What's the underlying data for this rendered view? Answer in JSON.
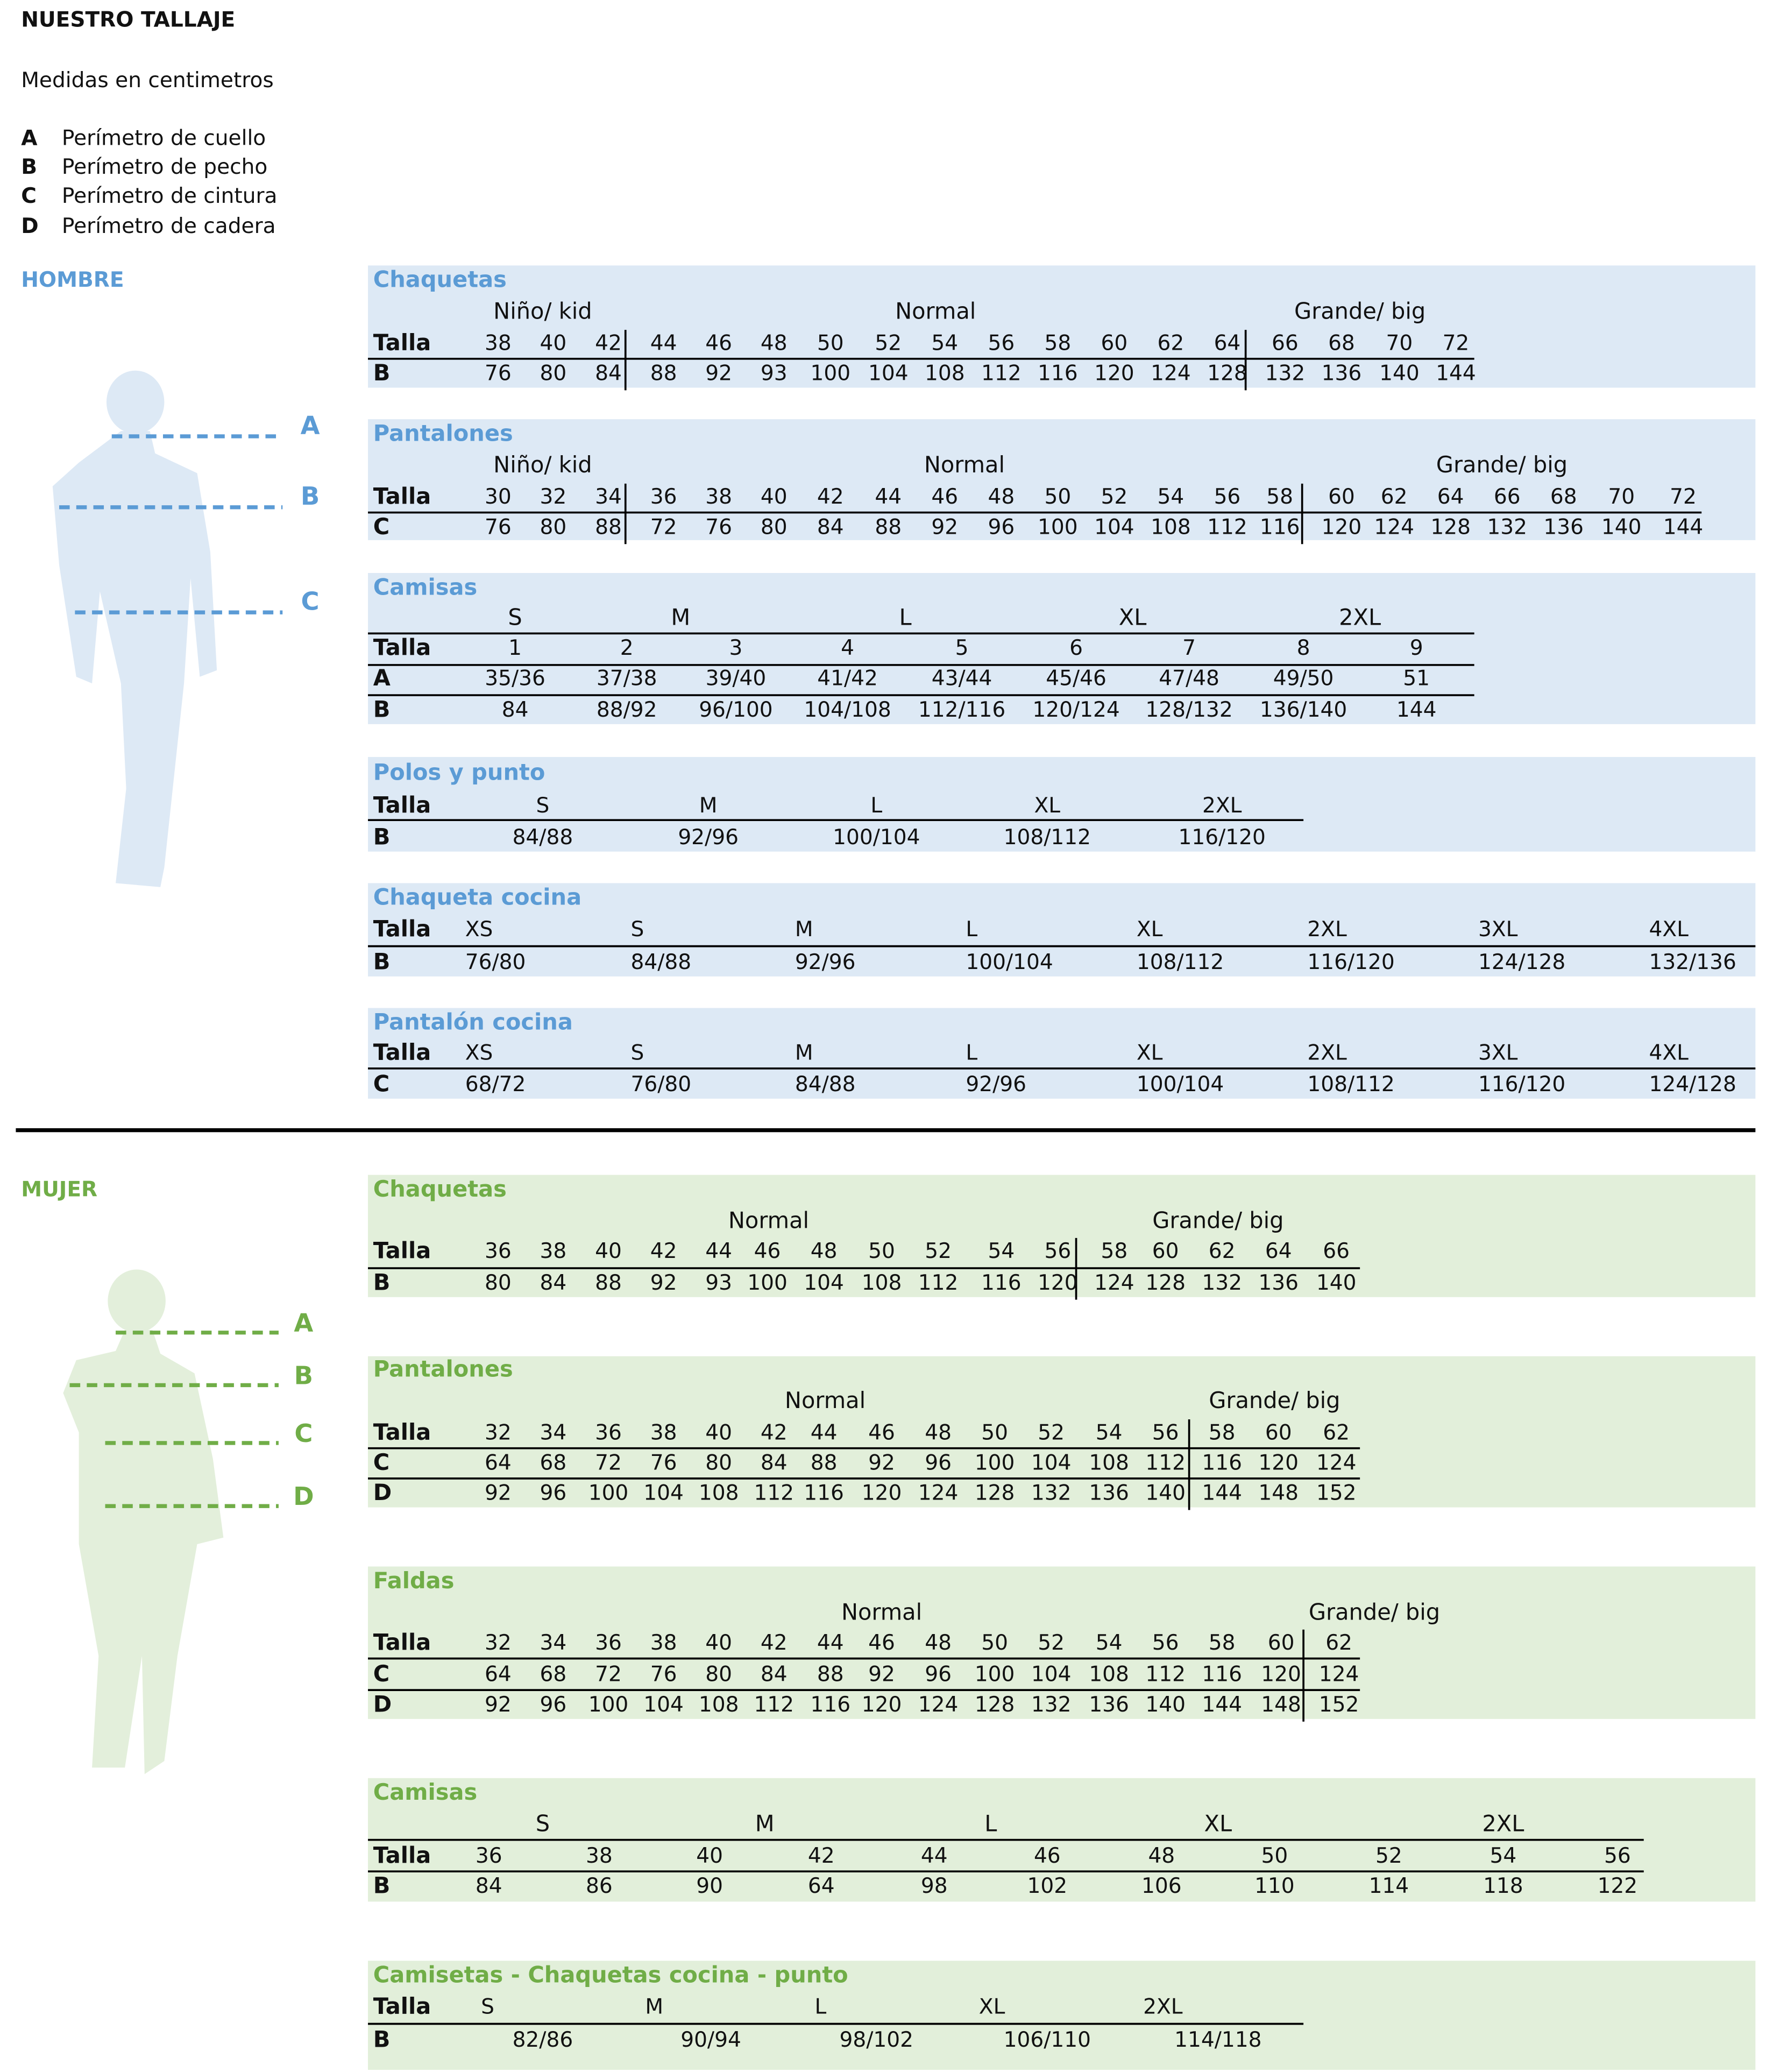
{
  "header": {
    "title": "NUESTRO TALLAJE",
    "subtitle": "Medidas en centimetros",
    "legend": [
      {
        "key": "A",
        "label": "Perímetro de cuello"
      },
      {
        "key": "B",
        "label": "Perímetro de pecho"
      },
      {
        "key": "C",
        "label": "Perímetro de cintura"
      },
      {
        "key": "D",
        "label": "Perímetro de cadera"
      }
    ]
  },
  "sections": [
    {
      "name": "HOMBRE",
      "figure_labels": [
        "A",
        "B",
        "C"
      ],
      "tables": [
        {
          "title": "Chaquetas",
          "groups": [
            "Niño/ kid",
            "Normal",
            "Grande/ big"
          ],
          "rows": [
            [
              "Talla",
              38,
              40,
              42,
              44,
              46,
              48,
              50,
              52,
              54,
              56,
              58,
              60,
              62,
              64,
              66,
              68,
              70,
              72
            ],
            [
              "B",
              76,
              80,
              84,
              88,
              92,
              93,
              100,
              104,
              108,
              112,
              116,
              120,
              124,
              128,
              132,
              136,
              140,
              144
            ]
          ]
        },
        {
          "title": "Pantalones",
          "groups": [
            "Niño/ kid",
            "Normal",
            "Grande/ big"
          ],
          "rows": [
            [
              "Talla",
              30,
              32,
              34,
              36,
              38,
              40,
              42,
              44,
              46,
              48,
              50,
              52,
              54,
              56,
              58,
              60,
              62,
              64,
              66,
              68,
              70,
              72
            ],
            [
              "C",
              76,
              80,
              88,
              72,
              76,
              80,
              84,
              88,
              92,
              96,
              100,
              104,
              108,
              112,
              116,
              120,
              124,
              128,
              132,
              136,
              140,
              144
            ]
          ]
        },
        {
          "title": "Camisas",
          "groups": [
            "S",
            "M",
            "L",
            "XL",
            "2XL"
          ],
          "rows": [
            [
              "Talla",
              1,
              2,
              3,
              4,
              5,
              6,
              7,
              8,
              9
            ],
            [
              "A",
              "35/36",
              "37/38",
              "39/40",
              "41/42",
              "43/44",
              "45/46",
              "47/48",
              "49/50",
              51
            ],
            [
              "B",
              84,
              "88/92",
              "96/100",
              "104/108",
              "112/116",
              "120/124",
              "128/132",
              "136/140",
              144
            ]
          ]
        },
        {
          "title": "Polos y punto",
          "rows": [
            [
              "Talla",
              "S",
              "M",
              "L",
              "XL",
              "2XL"
            ],
            [
              "B",
              "84/88",
              "92/96",
              "100/104",
              "108/112",
              "116/120"
            ]
          ]
        },
        {
          "title": "Chaqueta cocina",
          "rows": [
            [
              "Talla",
              "XS",
              "S",
              "M",
              "L",
              "XL",
              "2XL",
              "3XL",
              "4XL"
            ],
            [
              "B",
              "76/80",
              "84/88",
              "92/96",
              "100/104",
              "108/112",
              "116/120",
              "124/128",
              "132/136"
            ]
          ]
        },
        {
          "title": "Pantalón cocina",
          "rows": [
            [
              "Talla",
              "XS",
              "S",
              "M",
              "L",
              "XL",
              "2XL",
              "3XL",
              "4XL"
            ],
            [
              "C",
              "68/72",
              "76/80",
              "84/88",
              "92/96",
              "100/104",
              "108/112",
              "116/120",
              "124/128"
            ]
          ]
        }
      ]
    },
    {
      "name": "MUJER",
      "figure_labels": [
        "A",
        "B",
        "C",
        "D"
      ],
      "tables": [
        {
          "title": "Chaquetas",
          "groups": [
            "Normal",
            "Grande/ big"
          ],
          "rows": [
            [
              "Talla",
              36,
              38,
              40,
              42,
              44,
              46,
              48,
              50,
              52,
              54,
              56,
              58,
              60,
              62,
              64,
              66
            ],
            [
              "B",
              80,
              84,
              88,
              92,
              93,
              100,
              104,
              108,
              112,
              116,
              120,
              124,
              128,
              132,
              136,
              140
            ]
          ]
        },
        {
          "title": "Pantalones",
          "groups": [
            "Normal",
            "Grande/ big"
          ],
          "rows": [
            [
              "Talla",
              32,
              34,
              36,
              38,
              40,
              42,
              44,
              46,
              48,
              50,
              52,
              54,
              56,
              58,
              60,
              62
            ],
            [
              "C",
              64,
              68,
              72,
              76,
              80,
              84,
              88,
              92,
              96,
              100,
              104,
              108,
              112,
              116,
              120,
              124
            ],
            [
              "D",
              92,
              96,
              100,
              104,
              108,
              112,
              116,
              120,
              124,
              128,
              132,
              136,
              140,
              144,
              148,
              152
            ]
          ]
        },
        {
          "title": "Faldas",
          "groups": [
            "Normal",
            "Grande/ big"
          ],
          "rows": [
            [
              "Talla",
              32,
              34,
              36,
              38,
              40,
              42,
              44,
              46,
              48,
              50,
              52,
              54,
              56,
              58,
              60,
              62
            ],
            [
              "C",
              64,
              68,
              72,
              76,
              80,
              84,
              88,
              92,
              96,
              100,
              104,
              108,
              112,
              116,
              120,
              124
            ],
            [
              "D",
              92,
              96,
              100,
              104,
              108,
              112,
              116,
              120,
              124,
              128,
              132,
              136,
              140,
              144,
              148,
              152
            ]
          ]
        },
        {
          "title": "Camisas",
          "groups": [
            "S",
            "M",
            "L",
            "XL",
            "2XL"
          ],
          "rows": [
            [
              "Talla",
              36,
              38,
              40,
              42,
              44,
              46,
              48,
              50,
              52,
              54,
              56
            ],
            [
              "B",
              84,
              86,
              90,
              64,
              98,
              102,
              106,
              110,
              114,
              118,
              122
            ]
          ]
        },
        {
          "title": "Camisetas - Chaquetas cocina - punto",
          "rows": [
            [
              "Talla",
              "S",
              "M",
              "L",
              "XL",
              "2XL"
            ],
            [
              "B",
              "82/86",
              "90/94",
              "98/102",
              "106/110",
              "114/118"
            ]
          ]
        }
      ]
    }
  ]
}
